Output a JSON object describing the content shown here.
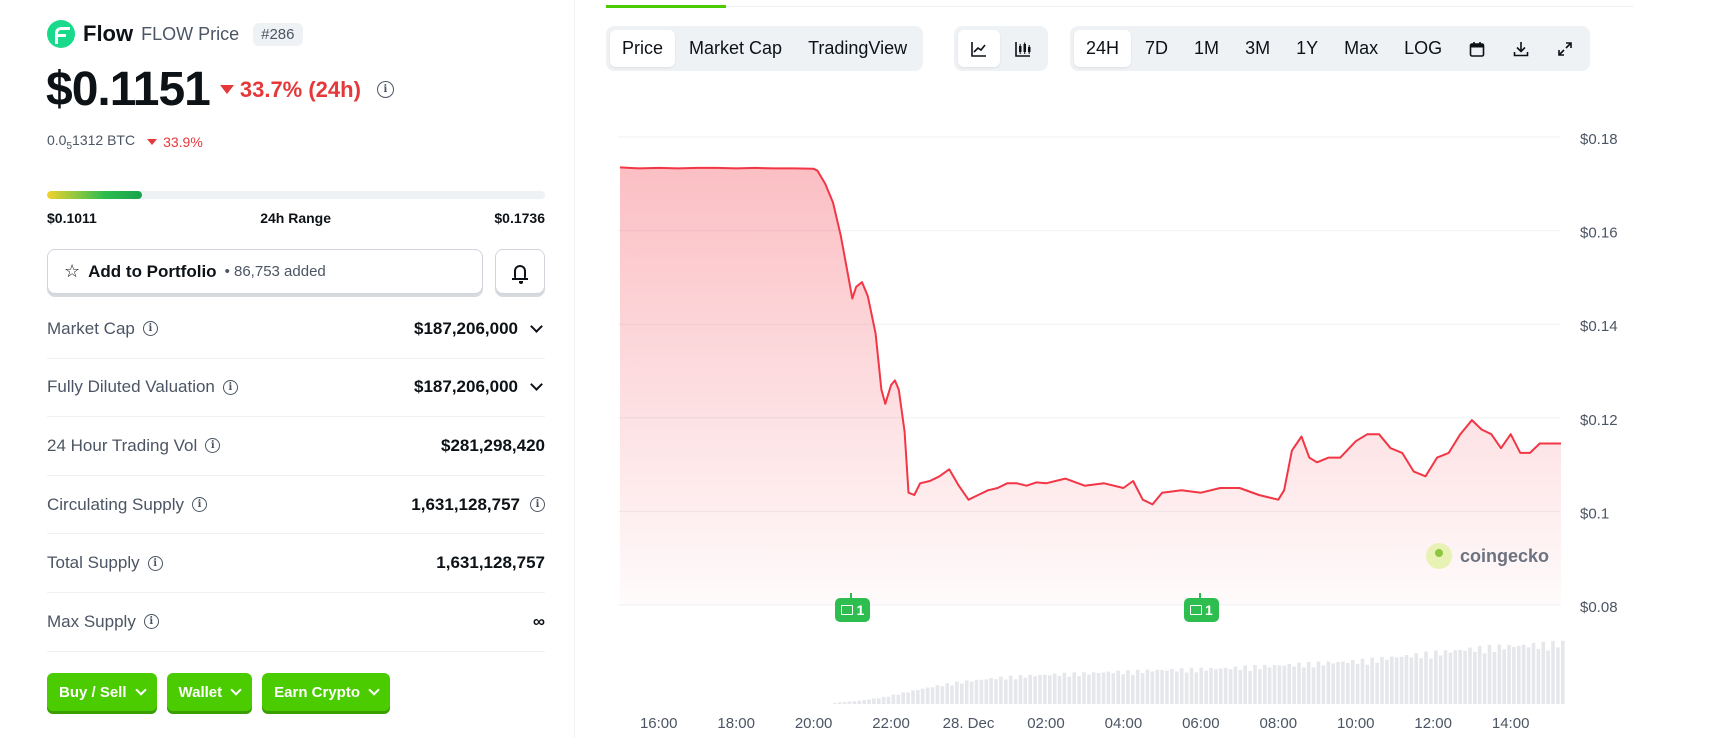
{
  "coin": {
    "name": "Flow",
    "symbol_label": "FLOW Price",
    "rank": "#286",
    "price": "$0.1151",
    "change_24h": "33.7% (24h)",
    "btc_price_prefix": "0.0",
    "btc_price_sub": "5",
    "btc_price_suffix": "1312 BTC",
    "btc_change": "33.9%",
    "brand_color": "#19d98b",
    "negative_color": "#e5383b"
  },
  "range": {
    "low": "$0.1011",
    "label": "24h Range",
    "high": "$0.1736",
    "current_position_pct": 19
  },
  "portfolio": {
    "label": "Add to Portfolio",
    "separator": "•",
    "count": "86,753 added",
    "icon": "star-icon",
    "alert_icon": "bell-icon"
  },
  "stats": [
    {
      "label": "Market Cap",
      "value": "$187,206,000",
      "has_info": true,
      "expandable": true,
      "value_info": false
    },
    {
      "label": "Fully Diluted Valuation",
      "value": "$187,206,000",
      "has_info": true,
      "expandable": true,
      "value_info": false
    },
    {
      "label": "24 Hour Trading Vol",
      "value": "$281,298,420",
      "has_info": true,
      "expandable": false,
      "value_info": false
    },
    {
      "label": "Circulating Supply",
      "value": "1,631,128,757",
      "has_info": true,
      "expandable": false,
      "value_info": true
    },
    {
      "label": "Total Supply",
      "value": "1,631,128,757",
      "has_info": true,
      "expandable": false,
      "value_info": false
    },
    {
      "label": "Max Supply",
      "value": "∞",
      "has_info": true,
      "expandable": false,
      "value_info": false
    }
  ],
  "actions": {
    "buy_sell": "Buy / Sell",
    "wallet": "Wallet",
    "earn": "Earn Crypto",
    "color": "#4bcc00"
  },
  "chart_tabs": {
    "price": "Price",
    "market_cap": "Market Cap",
    "tradingview": "TradingView",
    "active": "Price"
  },
  "chart_type_icons": [
    "line-chart-icon",
    "candlestick-icon"
  ],
  "ranges": {
    "items": [
      "24H",
      "7D",
      "1M",
      "3M",
      "1Y",
      "Max",
      "LOG"
    ],
    "active": "24H"
  },
  "toolbar_icons": [
    "calendar-icon",
    "download-icon",
    "fullscreen-icon"
  ],
  "watermark": "coingecko",
  "news_badges": [
    {
      "count": "1",
      "x_hour": 21.0
    },
    {
      "count": "1",
      "x_hour": 30.0
    }
  ],
  "chart_data": {
    "type": "area",
    "line_color": "#f23645",
    "y_ticks": [
      "$0.18",
      "$0.16",
      "$0.14",
      "$0.12",
      "$0.1",
      "$0.08"
    ],
    "y_tick_values": [
      0.18,
      0.16,
      0.14,
      0.12,
      0.1,
      0.08
    ],
    "ylim": [
      0.08,
      0.18
    ],
    "x_ticks": [
      "16:00",
      "18:00",
      "20:00",
      "22:00",
      "28. Dec",
      "02:00",
      "04:00",
      "06:00",
      "08:00",
      "10:00",
      "12:00",
      "14:00"
    ],
    "x_tick_hours": [
      16,
      18,
      20,
      22,
      24,
      26,
      28,
      30,
      32,
      34,
      36,
      38
    ],
    "xlim": [
      15.0,
      39.3
    ],
    "series": [
      {
        "x": [
          15.0,
          15.5,
          16.0,
          16.5,
          17.0,
          17.5,
          18.0,
          18.5,
          19.0,
          19.5,
          20.0,
          20.1,
          20.3,
          20.5,
          20.7,
          20.9,
          21.0,
          21.1,
          21.25,
          21.4,
          21.6,
          21.75,
          21.85,
          22.0,
          22.1,
          22.2,
          22.35,
          22.45,
          22.6,
          22.75,
          23.0,
          23.25,
          23.5,
          23.75,
          24.0,
          24.25,
          24.5,
          24.75,
          25.0,
          25.25,
          25.5,
          25.75,
          26.0,
          26.5,
          27.0,
          27.5,
          28.0,
          28.25,
          28.5,
          28.75,
          29.0,
          29.5,
          30.0,
          30.5,
          31.0,
          31.5,
          32.0,
          32.15,
          32.35,
          32.6,
          32.8,
          33.0,
          33.3,
          33.6,
          34.0,
          34.3,
          34.6,
          34.9,
          35.2,
          35.5,
          35.8,
          36.1,
          36.4,
          36.7,
          37.0,
          37.25,
          37.5,
          37.75,
          38.0,
          38.25,
          38.5,
          38.75,
          39.0,
          39.3
        ],
        "y": [
          0.1735,
          0.1733,
          0.1734,
          0.1733,
          0.1734,
          0.1734,
          0.1733,
          0.1734,
          0.1733,
          0.1733,
          0.1732,
          0.1728,
          0.17,
          0.166,
          0.159,
          0.15,
          0.1455,
          0.148,
          0.149,
          0.146,
          0.138,
          0.126,
          0.123,
          0.127,
          0.128,
          0.126,
          0.117,
          0.104,
          0.1035,
          0.106,
          0.1065,
          0.1075,
          0.109,
          0.1055,
          0.1025,
          0.1035,
          0.1045,
          0.105,
          0.106,
          0.106,
          0.1055,
          0.1062,
          0.106,
          0.107,
          0.1055,
          0.106,
          0.105,
          0.1065,
          0.1025,
          0.1015,
          0.104,
          0.1045,
          0.104,
          0.105,
          0.105,
          0.1035,
          0.1025,
          0.1045,
          0.113,
          0.116,
          0.1115,
          0.1105,
          0.1115,
          0.1115,
          0.115,
          0.1165,
          0.1165,
          0.1135,
          0.1125,
          0.1085,
          0.1075,
          0.1115,
          0.1125,
          0.1165,
          0.1195,
          0.1175,
          0.1165,
          0.1135,
          0.1165,
          0.1125,
          0.1125,
          0.1145,
          0.1145,
          0.1145
        ]
      }
    ],
    "volume": {
      "x_start": 20.5,
      "x_end": 39.3,
      "values": [
        0.02,
        0.05,
        0.1,
        0.18,
        0.26,
        0.33,
        0.38,
        0.42,
        0.45,
        0.47,
        0.49,
        0.5,
        0.52,
        0.53,
        0.55,
        0.56,
        0.57,
        0.58,
        0.6,
        0.62,
        0.64,
        0.66,
        0.68,
        0.7,
        0.74,
        0.78,
        0.82,
        0.86,
        0.9,
        0.93,
        0.95,
        0.97,
        1.0
      ]
    }
  }
}
